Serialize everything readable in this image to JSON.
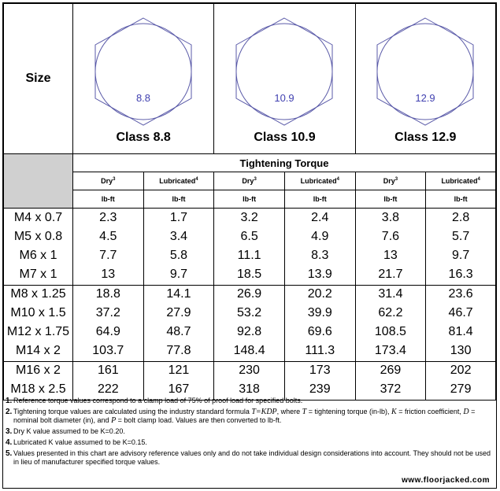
{
  "header": {
    "size_label": "Size",
    "classes": [
      {
        "hex_label": "8.8",
        "label": "Class 8.8"
      },
      {
        "hex_label": "10.9",
        "label": "Class 10.9"
      },
      {
        "hex_label": "12.9",
        "label": "Class 12.9"
      }
    ],
    "tightening_torque": "Tightening Torque",
    "dry_label": "Dry",
    "dry_note": "3",
    "lub_label": "Lubricated",
    "lub_note": "4",
    "unit": "lb-ft"
  },
  "groups": [
    {
      "sizes": [
        "M4 x 0.7",
        "M5 x 0.8",
        "M6 x 1",
        "M7 x 1"
      ],
      "columns": [
        [
          "2.3",
          "4.5",
          "7.7",
          "13"
        ],
        [
          "1.7",
          "3.4",
          "5.8",
          "9.7"
        ],
        [
          "3.2",
          "6.5",
          "11.1",
          "18.5"
        ],
        [
          "2.4",
          "4.9",
          "8.3",
          "13.9"
        ],
        [
          "3.8",
          "7.6",
          "13",
          "21.7"
        ],
        [
          "2.8",
          "5.7",
          "9.7",
          "16.3"
        ]
      ]
    },
    {
      "sizes": [
        "M8 x 1.25",
        "M10 x 1.5",
        "M12 x 1.75",
        "M14 x 2"
      ],
      "columns": [
        [
          "18.8",
          "37.2",
          "64.9",
          "103.7"
        ],
        [
          "14.1",
          "27.9",
          "48.7",
          "77.8"
        ],
        [
          "26.9",
          "53.2",
          "92.8",
          "148.4"
        ],
        [
          "20.2",
          "39.9",
          "69.6",
          "111.3"
        ],
        [
          "31.4",
          "62.2",
          "108.5",
          "173.4"
        ],
        [
          "23.6",
          "46.7",
          "81.4",
          "130"
        ]
      ]
    },
    {
      "sizes": [
        "M16 x 2",
        "M18 x 2.5"
      ],
      "columns": [
        [
          "161",
          "222"
        ],
        [
          "121",
          "167"
        ],
        [
          "230",
          "318"
        ],
        [
          "173",
          "239"
        ],
        [
          "269",
          "372"
        ],
        [
          "202",
          "279"
        ]
      ]
    }
  ],
  "notes": {
    "n1": {
      "num": "1.",
      "text": "Reference torque values correspond to a clamp load of 75% of proof load for specified bolts."
    },
    "n2": {
      "num": "2.",
      "a": "Tightening torque values are calculated using the industry standard formula ",
      "formula": "T=KDP",
      "b": ", where ",
      "t": "T",
      "c": " = tightening torque (in-lb), ",
      "k": "K",
      "d": " = friction coefficient, ",
      "dd": "D",
      "e": " = nominal bolt diameter (in), and ",
      "p": "P",
      "f": " = bolt clamp load. Values are then converted to lb-ft."
    },
    "n3": {
      "num": "3.",
      "text": "Dry K value assumed to be K=0.20."
    },
    "n4": {
      "num": "4.",
      "text": "Lubricated K value assumed to be K=0.15."
    },
    "n5": {
      "num": "5.",
      "text": "Values presented in this chart are advisory reference values only and do not take individual design considerations into account. They should not be used in lieu of manufacturer specified torque values."
    }
  },
  "website": "www.floorjacked.com",
  "colors": {
    "hex_outline": "#5a5aa8",
    "hex_text": "#4040b0",
    "gray": "#d0d0d0"
  }
}
